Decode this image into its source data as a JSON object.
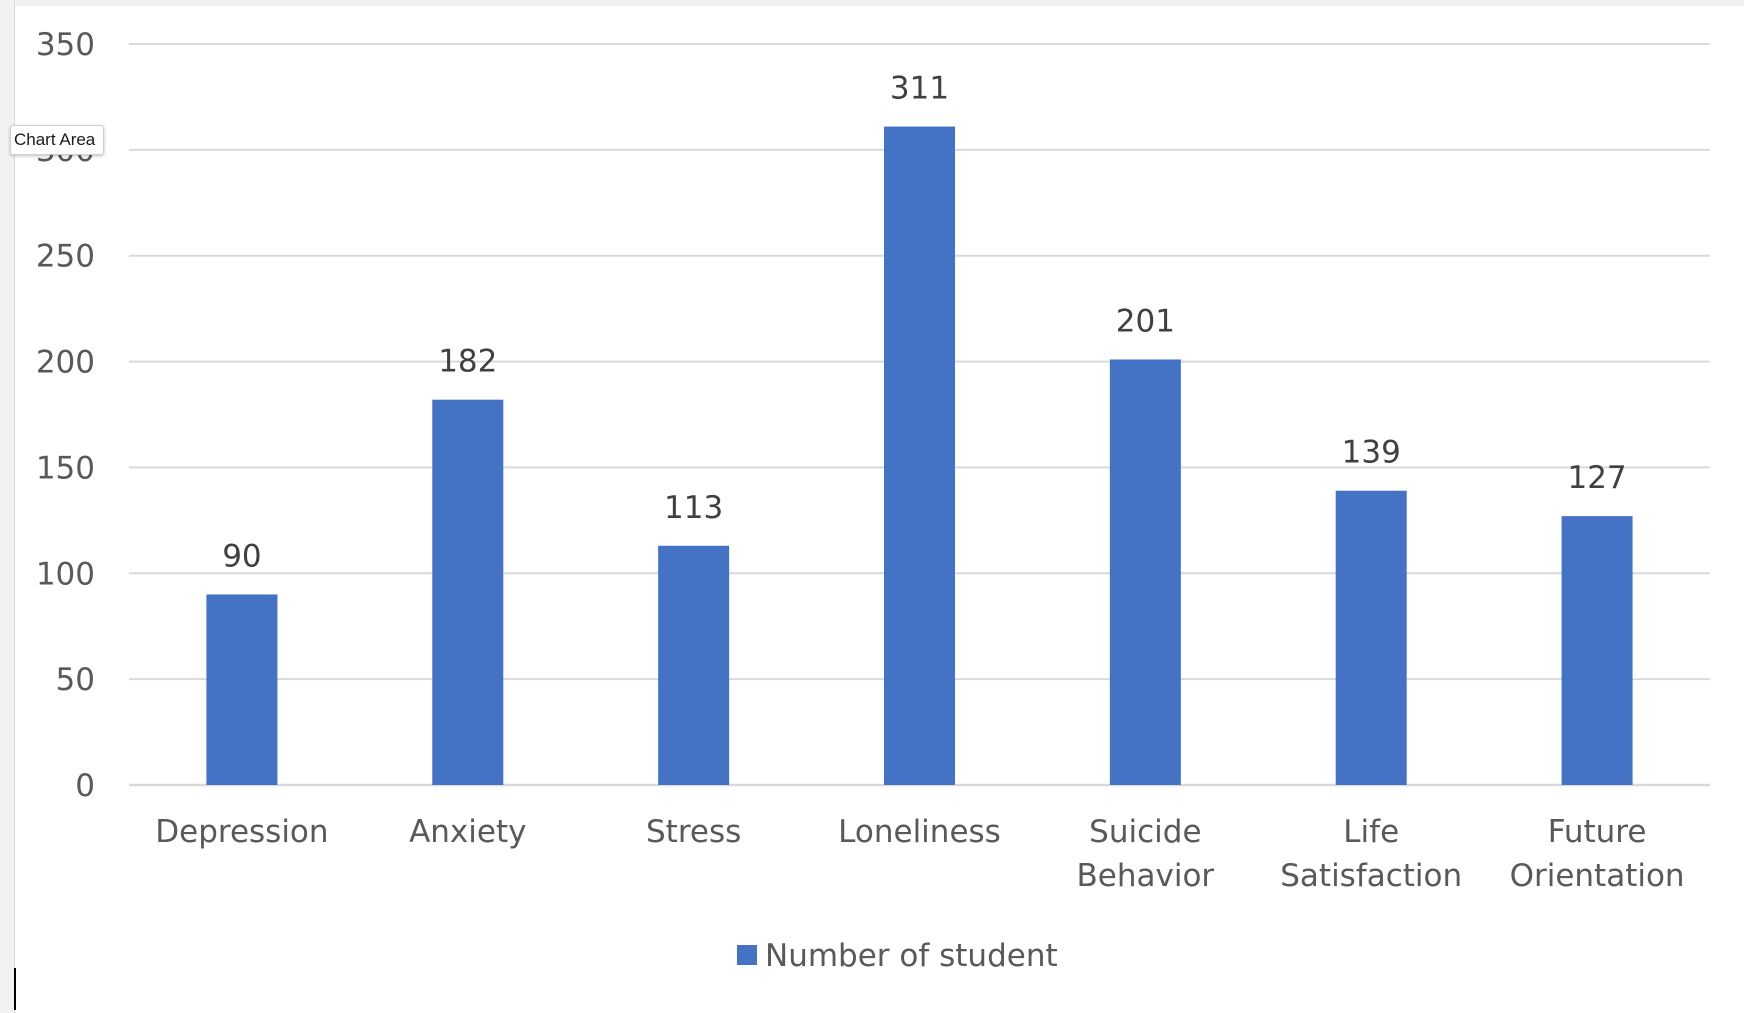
{
  "tooltip": {
    "text": "Chart Area"
  },
  "chart_data": {
    "type": "bar",
    "categories": [
      "Depression",
      "Anxiety",
      "Stress",
      "Loneliness",
      "Suicide Behavior",
      "Life Satisfaction",
      "Future Orientation"
    ],
    "category_lines": [
      [
        "Depression"
      ],
      [
        "Anxiety"
      ],
      [
        "Stress"
      ],
      [
        "Loneliness"
      ],
      [
        "Suicide",
        "Behavior"
      ],
      [
        "Life",
        "Satisfaction"
      ],
      [
        "Future",
        "Orientation"
      ]
    ],
    "series": [
      {
        "name": "Number of student",
        "values": [
          90,
          182,
          113,
          311,
          201,
          139,
          127
        ],
        "color": "#4472C4"
      }
    ],
    "data_labels": [
      "90",
      "182",
      "113",
      "311",
      "201",
      "139",
      "127"
    ],
    "ylim": [
      0,
      350
    ],
    "yticks": [
      0,
      50,
      100,
      150,
      200,
      250,
      300,
      350
    ],
    "ytick_labels": [
      "0",
      "50",
      "100",
      "150",
      "200",
      "250",
      "300",
      "350"
    ],
    "grid": true,
    "legend_position": "bottom",
    "gridline_color": "#D9D9D9",
    "title": "",
    "xlabel": "",
    "ylabel": ""
  }
}
